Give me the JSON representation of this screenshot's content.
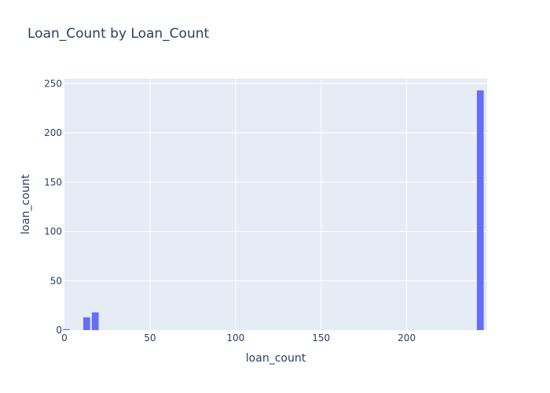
{
  "chart_data": {
    "type": "bar",
    "title": "Loan_Count by Loan_Count",
    "xlabel": "loan_count",
    "ylabel": "loan_count",
    "xlim": [
      0,
      247
    ],
    "ylim": [
      0,
      255
    ],
    "x_ticks": [
      0,
      50,
      100,
      150,
      200
    ],
    "y_ticks": [
      0,
      50,
      100,
      150,
      200,
      250
    ],
    "grid": true,
    "bar_width": 4,
    "colors": {
      "bar": "#636efa",
      "plot_bg": "#e5ecf6",
      "grid": "#ffffff",
      "text": "#2a3f5f"
    },
    "bars": [
      {
        "x": 1,
        "y": 1
      },
      {
        "x": 13,
        "y": 13
      },
      {
        "x": 18,
        "y": 18
      },
      {
        "x": 243,
        "y": 243
      }
    ]
  }
}
